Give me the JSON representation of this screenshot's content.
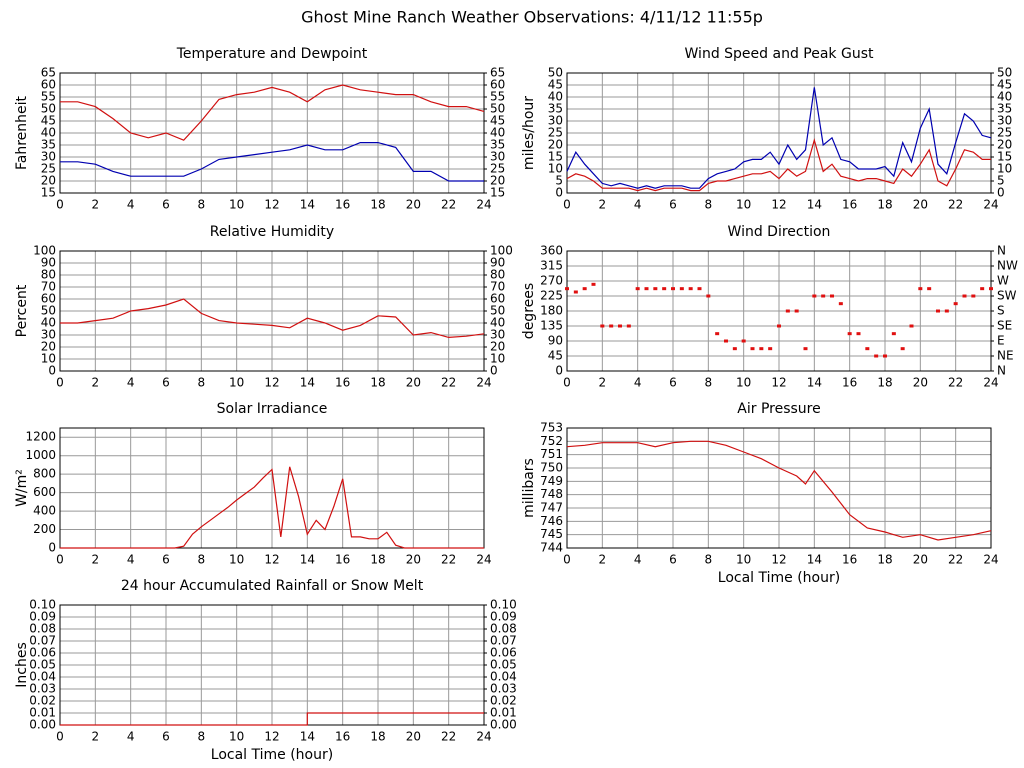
{
  "title": "Ghost Mine Ranch Weather Observations: 4/11/12 11:55p",
  "chart_data": [
    {
      "type": "line",
      "title": "Temperature and Dewpoint",
      "ylabel": "Fahrenheit",
      "grid": true,
      "x": [
        0,
        1,
        2,
        3,
        4,
        5,
        6,
        7,
        8,
        9,
        10,
        11,
        12,
        13,
        14,
        15,
        16,
        17,
        18,
        19,
        20,
        21,
        22,
        23,
        24
      ],
      "series": [
        {
          "color": "#d01010",
          "values": [
            53,
            53,
            51,
            46,
            40,
            38,
            40,
            37,
            45,
            54,
            56,
            57,
            59,
            57,
            53,
            58,
            60,
            58,
            57,
            56,
            56,
            53,
            51,
            51,
            49
          ]
        },
        {
          "color": "#0000b0",
          "values": [
            28,
            28,
            27,
            24,
            22,
            22,
            22,
            22,
            25,
            29,
            30,
            31,
            32,
            33,
            35,
            33,
            33,
            36,
            36,
            34,
            24,
            24,
            20,
            20,
            20
          ]
        }
      ],
      "xlim": [
        0,
        24
      ],
      "xticks": [
        0,
        2,
        4,
        6,
        8,
        10,
        12,
        14,
        16,
        18,
        20,
        22,
        24
      ],
      "ylim": [
        15,
        65
      ],
      "yticks": [
        15,
        20,
        25,
        30,
        35,
        40,
        45,
        50,
        55,
        60,
        65
      ],
      "y2lim": [
        15,
        65
      ],
      "y2ticks": [
        15,
        20,
        25,
        30,
        35,
        40,
        45,
        50,
        55,
        60,
        65
      ]
    },
    {
      "type": "line",
      "title": "Wind Speed and Peak Gust",
      "ylabel": "miles/hour",
      "grid": true,
      "x": [
        0,
        0.5,
        1,
        1.5,
        2,
        2.5,
        3,
        3.5,
        4,
        4.5,
        5,
        5.5,
        6,
        6.5,
        7,
        7.5,
        8,
        8.5,
        9,
        9.5,
        10,
        10.5,
        11,
        11.5,
        12,
        12.5,
        13,
        13.5,
        14,
        14.5,
        15,
        15.5,
        16,
        16.5,
        17,
        17.5,
        18,
        18.5,
        19,
        19.5,
        20,
        20.5,
        21,
        21.5,
        22,
        22.5,
        23,
        23.5,
        24
      ],
      "series": [
        {
          "color": "#0000b0",
          "values": [
            9,
            17,
            12,
            8,
            4,
            3,
            4,
            3,
            2,
            3,
            2,
            3,
            3,
            3,
            2,
            2,
            6,
            8,
            9,
            10,
            13,
            14,
            14,
            17,
            12,
            20,
            14,
            18,
            44,
            20,
            23,
            14,
            13,
            10,
            10,
            10,
            11,
            7,
            21,
            13,
            27,
            35,
            12,
            8,
            21,
            33,
            30,
            24,
            23
          ]
        },
        {
          "color": "#d01010",
          "values": [
            6,
            8,
            7,
            5,
            2,
            2,
            2,
            2,
            1,
            2,
            1,
            2,
            2,
            2,
            1,
            1,
            4,
            5,
            5,
            6,
            7,
            8,
            8,
            9,
            6,
            10,
            7,
            9,
            22,
            9,
            12,
            7,
            6,
            5,
            6,
            6,
            5,
            4,
            10,
            7,
            12,
            18,
            5,
            3,
            10,
            18,
            17,
            14,
            14
          ]
        }
      ],
      "xlim": [
        0,
        24
      ],
      "xticks": [
        0,
        2,
        4,
        6,
        8,
        10,
        12,
        14,
        16,
        18,
        20,
        22,
        24
      ],
      "ylim": [
        0,
        50
      ],
      "yticks": [
        0,
        5,
        10,
        15,
        20,
        25,
        30,
        35,
        40,
        45,
        50
      ],
      "y2lim": [
        0,
        50
      ],
      "y2ticks": [
        0,
        5,
        10,
        15,
        20,
        25,
        30,
        35,
        40,
        45,
        50
      ]
    },
    {
      "type": "line",
      "title": "Relative Humidity",
      "ylabel": "Percent",
      "grid": true,
      "x": [
        0,
        1,
        2,
        3,
        4,
        5,
        6,
        7,
        8,
        9,
        10,
        11,
        12,
        13,
        14,
        15,
        16,
        17,
        18,
        19,
        20,
        21,
        22,
        23,
        24
      ],
      "series": [
        {
          "color": "#d01010",
          "values": [
            40,
            40,
            42,
            44,
            50,
            52,
            55,
            60,
            48,
            42,
            40,
            39,
            38,
            36,
            44,
            40,
            34,
            38,
            46,
            45,
            30,
            32,
            28,
            29,
            31
          ]
        }
      ],
      "xlim": [
        0,
        24
      ],
      "xticks": [
        0,
        2,
        4,
        6,
        8,
        10,
        12,
        14,
        16,
        18,
        20,
        22,
        24
      ],
      "ylim": [
        0,
        100
      ],
      "yticks": [
        0,
        10,
        20,
        30,
        40,
        50,
        60,
        70,
        80,
        90,
        100
      ],
      "y2lim": [
        0,
        100
      ],
      "y2ticks": [
        0,
        10,
        20,
        30,
        40,
        50,
        60,
        70,
        80,
        90,
        100
      ]
    },
    {
      "type": "scatter",
      "title": "Wind Direction",
      "ylabel": "degrees",
      "grid": true,
      "x": [
        0,
        0.5,
        1,
        1.5,
        2,
        2.5,
        3,
        3.5,
        4,
        4.5,
        5,
        5.5,
        6,
        6.5,
        7,
        7.5,
        8,
        8.5,
        9,
        9.5,
        10,
        10.5,
        11,
        11.5,
        12,
        12.5,
        13,
        13.5,
        14,
        14.5,
        15,
        15.5,
        16,
        16.5,
        17,
        17.5,
        18,
        18.5,
        19,
        19.5,
        20,
        20.5,
        21,
        21.5,
        22,
        22.5,
        23,
        23.5,
        24
      ],
      "series": [
        {
          "color": "#e01010",
          "values": [
            247,
            237,
            247,
            260,
            135,
            135,
            135,
            135,
            247,
            247,
            247,
            247,
            247,
            247,
            247,
            247,
            225,
            112,
            90,
            67,
            90,
            67,
            67,
            67,
            135,
            180,
            180,
            67,
            225,
            225,
            225,
            202,
            112,
            112,
            67,
            45,
            45,
            112,
            67,
            135,
            247,
            247,
            180,
            180,
            202,
            225,
            225,
            247,
            247
          ]
        }
      ],
      "xlim": [
        0,
        24
      ],
      "xticks": [
        0,
        2,
        4,
        6,
        8,
        10,
        12,
        14,
        16,
        18,
        20,
        22,
        24
      ],
      "ylim": [
        0,
        360
      ],
      "yticks": [
        0,
        45,
        90,
        135,
        180,
        225,
        270,
        315,
        360
      ],
      "y2lim": [
        0,
        360
      ],
      "y2ticks": [
        {
          "value": 0,
          "label": "N"
        },
        {
          "value": 45,
          "label": "NE"
        },
        {
          "value": 90,
          "label": "E"
        },
        {
          "value": 135,
          "label": "SE"
        },
        {
          "value": 180,
          "label": "S"
        },
        {
          "value": 225,
          "label": "SW"
        },
        {
          "value": 270,
          "label": "W"
        },
        {
          "value": 315,
          "label": "NW"
        },
        {
          "value": 360,
          "label": "N"
        }
      ]
    },
    {
      "type": "line",
      "title": "Solar Irradiance",
      "ylabel": "W/m²",
      "grid": true,
      "x": [
        0,
        0.5,
        1,
        1.5,
        2,
        2.5,
        3,
        3.5,
        4,
        4.5,
        5,
        5.5,
        6,
        6.5,
        7,
        7.5,
        8,
        8.5,
        9,
        9.5,
        10,
        10.5,
        11,
        11.5,
        12,
        12.5,
        13,
        13.5,
        14,
        14.5,
        15,
        15.5,
        16,
        16.5,
        17,
        17.5,
        18,
        18.5,
        19,
        19.5,
        20,
        20.5,
        21,
        21.5,
        22,
        22.5,
        23,
        23.5,
        24
      ],
      "series": [
        {
          "color": "#d01010",
          "values": [
            0,
            0,
            0,
            0,
            0,
            0,
            0,
            0,
            0,
            0,
            0,
            0,
            0,
            0,
            20,
            150,
            230,
            300,
            370,
            440,
            520,
            590,
            660,
            760,
            850,
            120,
            880,
            560,
            150,
            300,
            200,
            450,
            750,
            120,
            120,
            100,
            100,
            170,
            30,
            0,
            0,
            0,
            0,
            0,
            0,
            0,
            0,
            0,
            0
          ]
        }
      ],
      "xlim": [
        0,
        24
      ],
      "xticks": [
        0,
        2,
        4,
        6,
        8,
        10,
        12,
        14,
        16,
        18,
        20,
        22,
        24
      ],
      "ylim": [
        0,
        1300
      ],
      "yticks": [
        0,
        200,
        400,
        600,
        800,
        1000,
        1200
      ]
    },
    {
      "type": "line",
      "title": "Air Pressure",
      "ylabel": "millibars",
      "xlabel": "Local Time (hour)",
      "grid": true,
      "x": [
        0,
        1,
        2,
        3,
        4,
        5,
        6,
        7,
        8,
        9,
        10,
        11,
        12,
        13,
        13.5,
        14,
        15,
        16,
        17,
        18,
        19,
        20,
        21,
        22,
        23,
        24
      ],
      "series": [
        {
          "color": "#d01010",
          "values": [
            751.6,
            751.7,
            751.9,
            751.9,
            751.9,
            751.6,
            751.9,
            752,
            752,
            751.7,
            751.2,
            750.7,
            750,
            749.4,
            748.8,
            749.8,
            748.2,
            746.5,
            745.5,
            745.2,
            744.8,
            745,
            744.6,
            744.8,
            745,
            745.3
          ]
        }
      ],
      "xlim": [
        0,
        24
      ],
      "xticks": [
        0,
        2,
        4,
        6,
        8,
        10,
        12,
        14,
        16,
        18,
        20,
        22,
        24
      ],
      "ylim": [
        744,
        753
      ],
      "yticks": [
        744,
        745,
        746,
        747,
        748,
        749,
        750,
        751,
        752,
        753
      ]
    },
    {
      "type": "line",
      "title": "24 hour Accumulated Rainfall or Snow Melt",
      "ylabel": "Inches",
      "xlabel": "Local Time (hour)",
      "grid": true,
      "x": [
        0,
        14,
        14,
        24
      ],
      "series": [
        {
          "color": "#d01010",
          "values": [
            0,
            0,
            0.01,
            0.01
          ]
        }
      ],
      "xlim": [
        0,
        24
      ],
      "xticks": [
        0,
        2,
        4,
        6,
        8,
        10,
        12,
        14,
        16,
        18,
        20,
        22,
        24
      ],
      "ylim": [
        0,
        0.1
      ],
      "yticks": [
        {
          "value": 0,
          "label": "0.00"
        },
        {
          "value": 0.01,
          "label": "0.01"
        },
        {
          "value": 0.02,
          "label": "0.02"
        },
        {
          "value": 0.03,
          "label": "0.03"
        },
        {
          "value": 0.04,
          "label": "0.04"
        },
        {
          "value": 0.05,
          "label": "0.05"
        },
        {
          "value": 0.06,
          "label": "0.06"
        },
        {
          "value": 0.07,
          "label": "0.07"
        },
        {
          "value": 0.08,
          "label": "0.08"
        },
        {
          "value": 0.09,
          "label": "0.09"
        },
        {
          "value": 0.1,
          "label": "0.10"
        }
      ],
      "y2lim": [
        0,
        0.1
      ],
      "y2ticks": [
        {
          "value": 0,
          "label": "0.00"
        },
        {
          "value": 0.01,
          "label": "0.01"
        },
        {
          "value": 0.02,
          "label": "0.02"
        },
        {
          "value": 0.03,
          "label": "0.03"
        },
        {
          "value": 0.04,
          "label": "0.04"
        },
        {
          "value": 0.05,
          "label": "0.05"
        },
        {
          "value": 0.06,
          "label": "0.06"
        },
        {
          "value": 0.07,
          "label": "0.07"
        },
        {
          "value": 0.08,
          "label": "0.08"
        },
        {
          "value": 0.09,
          "label": "0.09"
        },
        {
          "value": 0.1,
          "label": "0.10"
        }
      ]
    }
  ]
}
